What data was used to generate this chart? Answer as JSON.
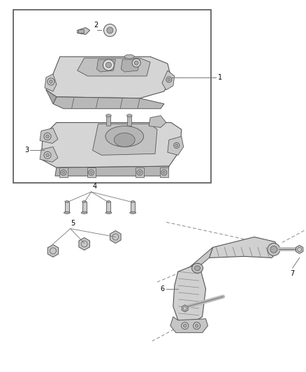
{
  "bg_color": "#ffffff",
  "line_color": "#777777",
  "label_color": "#000000",
  "part_fill": "#d8d8d8",
  "part_edge": "#555555",
  "dark_fill": "#aaaaaa",
  "bolt_fill": "#cccccc"
}
